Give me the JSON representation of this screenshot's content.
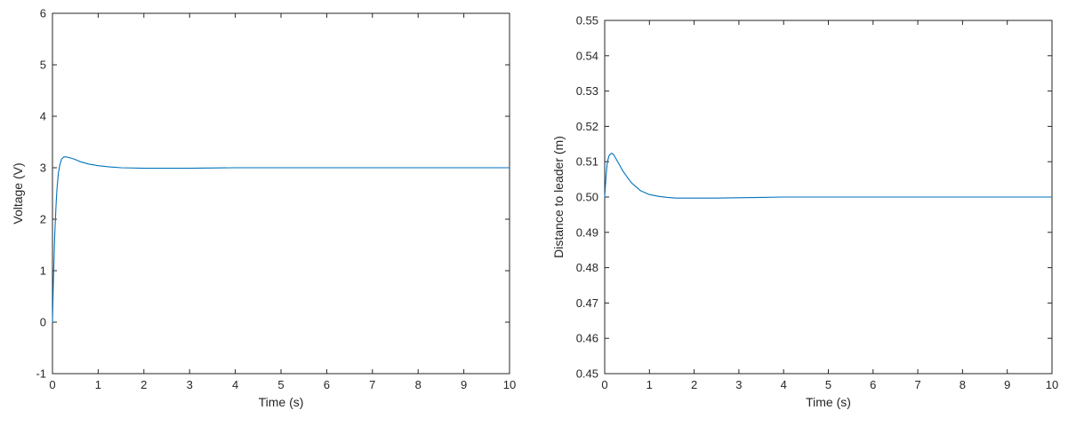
{
  "chart_data": [
    {
      "type": "line",
      "xlabel": "Time (s)",
      "ylabel": "Voltage (V)",
      "xlim": [
        0,
        10
      ],
      "ylim": [
        -1,
        6
      ],
      "xticks": [
        0,
        1,
        2,
        3,
        4,
        5,
        6,
        7,
        8,
        9,
        10
      ],
      "yticks": [
        -1,
        0,
        1,
        2,
        3,
        4,
        5,
        6
      ],
      "grid": false,
      "line_color": "#0072BD",
      "series": [
        {
          "x": [
            0,
            0.02,
            0.05,
            0.08,
            0.1,
            0.13,
            0.16,
            0.2,
            0.25,
            0.3,
            0.4,
            0.5,
            0.6,
            0.8,
            1.0,
            1.2,
            1.5,
            2.0,
            2.5,
            3.0,
            4.0,
            5.0,
            6.0,
            7.0,
            8.0,
            9.0,
            10.0
          ],
          "y": [
            0,
            0.8,
            1.7,
            2.3,
            2.6,
            2.9,
            3.05,
            3.17,
            3.21,
            3.21,
            3.19,
            3.16,
            3.12,
            3.07,
            3.04,
            3.02,
            3.0,
            2.99,
            2.99,
            2.99,
            3.0,
            3.0,
            3.0,
            3.0,
            3.0,
            3.0,
            3.0
          ]
        }
      ]
    },
    {
      "type": "line",
      "xlabel": "Time (s)",
      "ylabel": "Distance to leader (m)",
      "xlim": [
        0,
        10
      ],
      "ylim": [
        0.45,
        0.55
      ],
      "xticks": [
        0,
        1,
        2,
        3,
        4,
        5,
        6,
        7,
        8,
        9,
        10
      ],
      "yticks": [
        0.45,
        0.46,
        0.47,
        0.48,
        0.49,
        0.5,
        0.51,
        0.52,
        0.53,
        0.54,
        0.55
      ],
      "grid": false,
      "line_color": "#0072BD",
      "series": [
        {
          "x": [
            0,
            0.03,
            0.06,
            0.1,
            0.15,
            0.2,
            0.3,
            0.4,
            0.5,
            0.6,
            0.8,
            1.0,
            1.2,
            1.4,
            1.6,
            1.8,
            2.0,
            2.5,
            3.0,
            3.5,
            4.0,
            5.0,
            6.0,
            7.0,
            8.0,
            9.0,
            10.0
          ],
          "y": [
            0.5,
            0.506,
            0.51,
            0.5118,
            0.5124,
            0.512,
            0.5098,
            0.5075,
            0.5057,
            0.504,
            0.5018,
            0.5007,
            0.5002,
            0.4999,
            0.4997,
            0.4997,
            0.4997,
            0.4997,
            0.4998,
            0.4999,
            0.5,
            0.5,
            0.5,
            0.5,
            0.5,
            0.5,
            0.5
          ]
        }
      ]
    }
  ]
}
